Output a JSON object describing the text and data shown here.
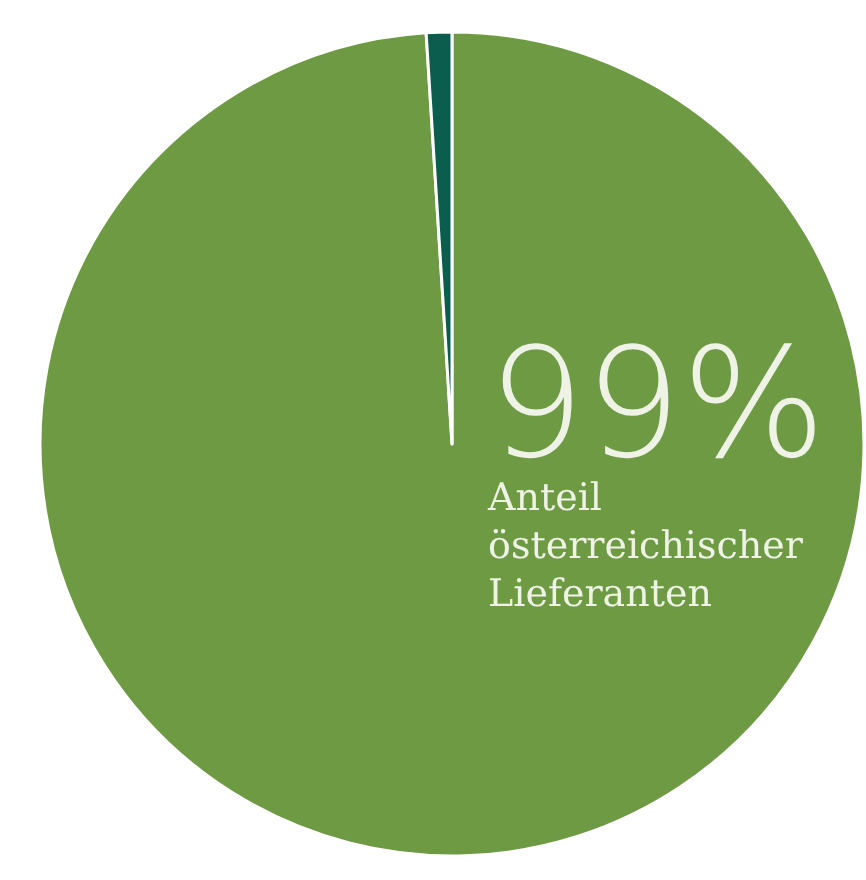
{
  "chart_data": {
    "type": "pie",
    "categories": [
      "Anteil österreichischer Lieferanten",
      null
    ],
    "values": [
      99,
      1
    ],
    "colors": [
      "#6e9a44",
      "#0b5e4d"
    ],
    "value_labels": [
      "99%",
      null
    ]
  }
}
